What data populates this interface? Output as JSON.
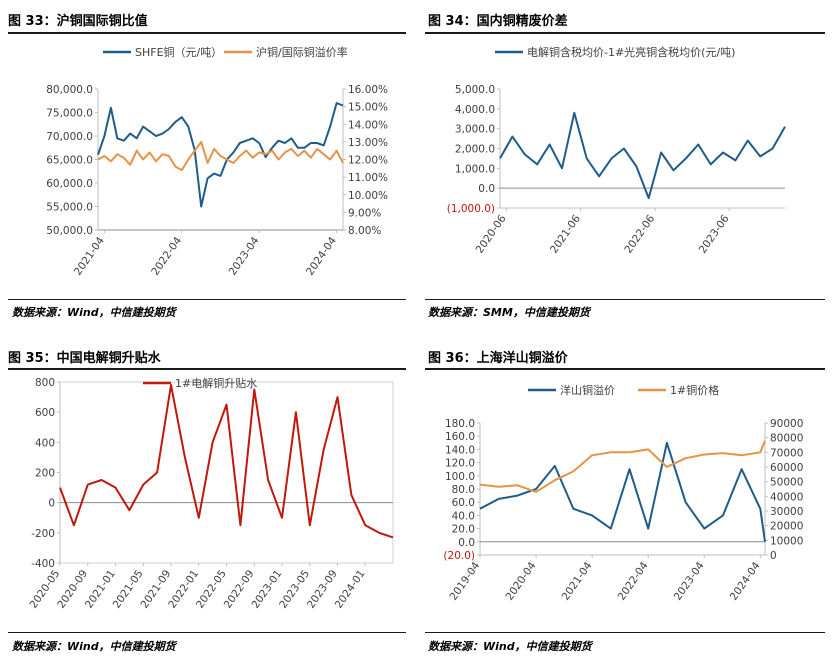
{
  "panels": [
    {
      "title": "图 33：沪铜国际铜比值",
      "source": "数据来源：Wind，中信建投期货"
    },
    {
      "title": "图 34：国内铜精废价差",
      "source": "数据来源：SMM，中信建投期货"
    },
    {
      "title": "图 35：中国电解铜升贴水",
      "source": ""
    },
    {
      "title": "图 36：上海洋山铜溢价",
      "source": "数据来源：Wind，中信建投期货"
    }
  ],
  "footer_source": "数据来源：Wind，中信建投期货",
  "chart_data": [
    {
      "type": "line",
      "legend_position": "top",
      "x_ticks": [
        "2021-04",
        "2022-04",
        "2023-04",
        "2024-04"
      ],
      "y_ticks": [
        "50,000.0",
        "55,000.0",
        "60,000.0",
        "65,000.0",
        "70,000.0",
        "75,000.0",
        "80,000.0"
      ],
      "ylim": [
        50000,
        80000
      ],
      "y2_ticks": [
        "8.00%",
        "9.00%",
        "10.00%",
        "11.00%",
        "12.00%",
        "13.00%",
        "14.00%",
        "15.00%",
        "16.00%"
      ],
      "y2lim": [
        8,
        16
      ],
      "xlim": [
        "2021-03",
        "2024-05"
      ],
      "series": [
        {
          "name": "SHFE铜（元/吨）",
          "axis": "left",
          "color": "#1f5c8b",
          "x": [
            "2021-03",
            "2021-04",
            "2021-05",
            "2021-06",
            "2021-07",
            "2021-08",
            "2021-09",
            "2021-10",
            "2021-11",
            "2021-12",
            "2022-01",
            "2022-02",
            "2022-03",
            "2022-04",
            "2022-05",
            "2022-06",
            "2022-07",
            "2022-08",
            "2022-09",
            "2022-10",
            "2022-11",
            "2022-12",
            "2023-01",
            "2023-02",
            "2023-03",
            "2023-04",
            "2023-05",
            "2023-06",
            "2023-07",
            "2023-08",
            "2023-09",
            "2023-10",
            "2023-11",
            "2023-12",
            "2024-01",
            "2024-02",
            "2024-03",
            "2024-04",
            "2024-05"
          ],
          "values": [
            66000,
            70000,
            76000,
            69500,
            69000,
            70500,
            69500,
            72000,
            71000,
            70000,
            70500,
            71500,
            73000,
            74000,
            72000,
            67000,
            55000,
            61000,
            62000,
            61500,
            65000,
            66500,
            68500,
            69000,
            69500,
            68500,
            65500,
            67500,
            69000,
            68500,
            69500,
            67500,
            67500,
            68500,
            68500,
            68000,
            72000,
            77000,
            76500
          ]
        },
        {
          "name": "沪铜/国际铜溢价率",
          "axis": "right",
          "color": "#e6934a",
          "x": [
            "2021-03",
            "2021-04",
            "2021-05",
            "2021-06",
            "2021-07",
            "2021-08",
            "2021-09",
            "2021-10",
            "2021-11",
            "2021-12",
            "2022-01",
            "2022-02",
            "2022-03",
            "2022-04",
            "2022-05",
            "2022-06",
            "2022-07",
            "2022-08",
            "2022-09",
            "2022-10",
            "2022-11",
            "2022-12",
            "2023-01",
            "2023-02",
            "2023-03",
            "2023-04",
            "2023-05",
            "2023-06",
            "2023-07",
            "2023-08",
            "2023-09",
            "2023-10",
            "2023-11",
            "2023-12",
            "2024-01",
            "2024-02",
            "2024-03",
            "2024-04",
            "2024-05"
          ],
          "values": [
            12.0,
            12.2,
            11.9,
            12.3,
            12.1,
            11.7,
            12.5,
            12.0,
            12.4,
            11.9,
            12.3,
            12.2,
            11.6,
            11.4,
            12.0,
            12.5,
            13.0,
            11.8,
            12.6,
            12.2,
            12.0,
            11.8,
            12.2,
            12.5,
            12.1,
            12.4,
            12.3,
            12.5,
            12.0,
            12.4,
            12.6,
            12.2,
            12.5,
            12.1,
            12.6,
            12.3,
            12.0,
            12.5,
            11.8
          ]
        }
      ]
    },
    {
      "type": "line",
      "legend_position": "top",
      "x_ticks": [
        "2020-06",
        "2021-06",
        "2022-06",
        "2023-06"
      ],
      "y_ticks": [
        "(1,000.0)",
        "0.0",
        "1,000.0",
        "2,000.0",
        "3,000.0",
        "4,000.0",
        "5,000.0"
      ],
      "ylim": [
        -1000,
        5000
      ],
      "xlim": [
        "2020-05",
        "2024-03"
      ],
      "series": [
        {
          "name": "电解铜含税均价-1#光亮铜含税均价(元/吨)",
          "axis": "left",
          "color": "#1f5c8b",
          "x": [
            "2020-05",
            "2020-07",
            "2020-09",
            "2020-11",
            "2021-01",
            "2021-03",
            "2021-05",
            "2021-07",
            "2021-09",
            "2021-11",
            "2022-01",
            "2022-03",
            "2022-05",
            "2022-07",
            "2022-09",
            "2022-11",
            "2023-01",
            "2023-03",
            "2023-05",
            "2023-07",
            "2023-09",
            "2023-11",
            "2024-01",
            "2024-03"
          ],
          "values": [
            1500,
            2600,
            1700,
            1200,
            2200,
            1000,
            3800,
            1500,
            600,
            1500,
            2000,
            1100,
            -500,
            1800,
            900,
            1500,
            2200,
            1200,
            1800,
            1400,
            2400,
            1600,
            2000,
            3100
          ]
        }
      ]
    },
    {
      "type": "line",
      "legend_position": "top",
      "x_ticks": [
        "2020-05",
        "2020-09",
        "2021-01",
        "2021-05",
        "2021-09",
        "2022-01",
        "2022-05",
        "2022-09",
        "2023-01",
        "2023-05",
        "2023-09",
        "2024-01"
      ],
      "y_ticks": [
        "-400",
        "-200",
        "0",
        "200",
        "400",
        "600",
        "800"
      ],
      "ylim": [
        -400,
        800
      ],
      "xlim": [
        "2020-05",
        "2024-05"
      ],
      "series": [
        {
          "name": "1#电解铜升贴水",
          "axis": "left",
          "color": "#c0180c",
          "x": [
            "2020-05",
            "2020-07",
            "2020-09",
            "2020-11",
            "2021-01",
            "2021-03",
            "2021-05",
            "2021-07",
            "2021-09",
            "2021-11",
            "2022-01",
            "2022-03",
            "2022-05",
            "2022-07",
            "2022-09",
            "2022-11",
            "2023-01",
            "2023-03",
            "2023-05",
            "2023-07",
            "2023-09",
            "2023-11",
            "2024-01",
            "2024-03",
            "2024-05"
          ],
          "values": [
            100,
            -150,
            120,
            150,
            100,
            -50,
            120,
            200,
            780,
            300,
            -100,
            400,
            650,
            -150,
            750,
            150,
            -100,
            600,
            -150,
            350,
            700,
            50,
            -150,
            -200,
            -230
          ]
        }
      ]
    },
    {
      "type": "line",
      "legend_position": "top",
      "x_ticks": [
        "2019-04",
        "2020-04",
        "2021-04",
        "2022-04",
        "2023-04",
        "2024-04"
      ],
      "y_ticks": [
        "(20.0)",
        "0.0",
        "20.0",
        "40.0",
        "60.0",
        "80.0",
        "100.0",
        "120.0",
        "140.0",
        "160.0",
        "180.0"
      ],
      "ylim": [
        -20,
        180
      ],
      "y2_ticks": [
        "0",
        "10000",
        "20000",
        "30000",
        "40000",
        "50000",
        "60000",
        "70000",
        "80000",
        "90000"
      ],
      "y2lim": [
        0,
        90000
      ],
      "xlim": [
        "2019-04",
        "2024-05"
      ],
      "series": [
        {
          "name": "洋山铜溢价",
          "axis": "left",
          "color": "#1f5c8b",
          "x": [
            "2019-04",
            "2019-08",
            "2019-12",
            "2020-04",
            "2020-08",
            "2020-12",
            "2021-04",
            "2021-08",
            "2021-12",
            "2022-04",
            "2022-08",
            "2022-12",
            "2023-04",
            "2023-08",
            "2023-12",
            "2024-04",
            "2024-05"
          ],
          "values": [
            50,
            65,
            70,
            80,
            115,
            50,
            40,
            20,
            110,
            20,
            150,
            60,
            20,
            40,
            110,
            50,
            0
          ]
        },
        {
          "name": "1#铜价格",
          "axis": "right",
          "color": "#e6934a",
          "x": [
            "2019-04",
            "2019-08",
            "2019-12",
            "2020-04",
            "2020-08",
            "2020-12",
            "2021-04",
            "2021-08",
            "2021-12",
            "2022-04",
            "2022-08",
            "2022-12",
            "2023-04",
            "2023-08",
            "2023-12",
            "2024-04",
            "2024-05"
          ],
          "values": [
            48000,
            46500,
            47500,
            43000,
            51000,
            57000,
            68000,
            70000,
            70000,
            72000,
            60000,
            66000,
            68500,
            69500,
            68000,
            70000,
            78000
          ]
        }
      ]
    }
  ]
}
